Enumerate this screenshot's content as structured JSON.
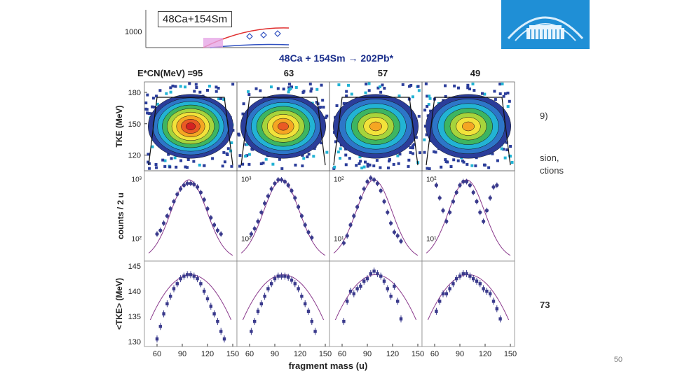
{
  "page_number": "50",
  "side_text": {
    "line1": "9)",
    "line2": "sion,",
    "line3": "ctions",
    "line4": "73"
  },
  "top_inset": {
    "label": "48Ca+154Sm",
    "ytick": "1000"
  },
  "reaction": "48Ca + 154Sm → 202Pb*",
  "colors": {
    "data": "#3a3a8c",
    "fit": "#8a3a8c",
    "logo": "#1f8fd6",
    "band_red": "#e03030",
    "band_blue": "#3050c0"
  },
  "chart_data": {
    "type": "scatter",
    "title": "48Ca + 154Sm → 202Pb*",
    "energy_label": "E*CN(MeV) =",
    "energies": [
      "95",
      "63",
      "57",
      "49"
    ],
    "xlabel": "fragment mass (u)",
    "xticks": [
      "60",
      "90",
      "120",
      "150"
    ],
    "xlim": [
      45,
      155
    ],
    "rows": [
      {
        "type": "heatmap",
        "ylabel": "TKE (MeV)",
        "yticks": [
          "120",
          "150",
          "180"
        ],
        "ylim": [
          105,
          190
        ]
      },
      {
        "type": "scatter",
        "ylabel": "counts / 2 u",
        "log": true,
        "panel_yticks": [
          [
            "10²",
            "10³"
          ],
          [
            "10²",
            "10³"
          ],
          [
            "10¹",
            "10²"
          ],
          [
            "10¹",
            "10²"
          ]
        ],
        "panels": [
          {
            "x": [
              60,
              64,
              68,
              72,
              76,
              80,
              84,
              88,
              92,
              96,
              100,
              104,
              108,
              112,
              116,
              120,
              124,
              128,
              132,
              136
            ],
            "y": [
              0.3,
              0.34,
              0.42,
              0.5,
              0.58,
              0.66,
              0.74,
              0.8,
              0.84,
              0.86,
              0.86,
              0.85,
              0.82,
              0.76,
              0.68,
              0.58,
              0.48,
              0.4,
              0.34,
              0.3
            ]
          },
          {
            "x": [
              62,
              66,
              70,
              74,
              78,
              82,
              86,
              90,
              94,
              98,
              102,
              106,
              110,
              114,
              118,
              122,
              126,
              130,
              134
            ],
            "y": [
              0.3,
              0.36,
              0.44,
              0.54,
              0.64,
              0.72,
              0.8,
              0.86,
              0.9,
              0.9,
              0.88,
              0.84,
              0.78,
              0.7,
              0.6,
              0.5,
              0.4,
              0.32,
              0.26
            ]
          },
          {
            "x": [
              62,
              66,
              70,
              74,
              78,
              82,
              86,
              90,
              94,
              98,
              102,
              106,
              110,
              114,
              118,
              122,
              126,
              130
            ],
            "y": [
              0.2,
              0.28,
              0.4,
              0.5,
              0.6,
              0.7,
              0.8,
              0.88,
              0.92,
              0.9,
              0.86,
              0.78,
              0.66,
              0.54,
              0.42,
              0.32,
              0.28,
              0.22
            ]
          },
          {
            "x": [
              62,
              66,
              70,
              74,
              78,
              82,
              86,
              90,
              94,
              98,
              102,
              106,
              110,
              114,
              118,
              122,
              126,
              130,
              134
            ],
            "y": [
              0.84,
              0.7,
              0.56,
              0.44,
              0.54,
              0.66,
              0.76,
              0.84,
              0.88,
              0.88,
              0.84,
              0.76,
              0.66,
              0.54,
              0.44,
              0.56,
              0.7,
              0.82,
              0.84
            ]
          }
        ]
      },
      {
        "type": "scatter",
        "ylabel": "<TKE> (MeV)",
        "yticks": [
          "130",
          "135",
          "140",
          "145"
        ],
        "ylim": [
          129,
          146
        ],
        "panels": [
          {
            "x": [
              60,
              64,
              68,
              72,
              76,
              80,
              84,
              88,
              92,
              96,
              100,
              104,
              108,
              112,
              116,
              120,
              124,
              128,
              132,
              136,
              140
            ],
            "y": [
              130.5,
              133.0,
              135.5,
              137.5,
              139.0,
              140.5,
              141.5,
              142.5,
              143.0,
              143.3,
              143.3,
              143.0,
              142.5,
              141.5,
              140.0,
              138.5,
              137.0,
              135.5,
              134.0,
              132.0,
              130.5
            ]
          },
          {
            "x": [
              62,
              66,
              70,
              74,
              78,
              82,
              86,
              90,
              94,
              98,
              102,
              106,
              110,
              114,
              118,
              122,
              126,
              130,
              134,
              138
            ],
            "y": [
              132.0,
              134.0,
              136.0,
              137.5,
              139.0,
              140.5,
              141.5,
              142.5,
              143.0,
              143.0,
              143.0,
              142.8,
              142.2,
              141.5,
              140.5,
              139.0,
              137.5,
              136.0,
              134.0,
              132.0
            ]
          },
          {
            "x": [
              62,
              66,
              70,
              74,
              78,
              82,
              86,
              90,
              94,
              98,
              102,
              106,
              110,
              114,
              118,
              122,
              126,
              130
            ],
            "y": [
              134.0,
              138.0,
              140.0,
              139.5,
              140.5,
              141.0,
              142.0,
              142.5,
              143.5,
              144.0,
              143.5,
              143.0,
              142.0,
              140.5,
              139.0,
              141.0,
              138.0,
              134.5
            ]
          },
          {
            "x": [
              62,
              66,
              70,
              74,
              78,
              82,
              86,
              90,
              94,
              98,
              102,
              106,
              110,
              114,
              118,
              122,
              126,
              130,
              134,
              138
            ],
            "y": [
              136.0,
              138.0,
              139.5,
              139.5,
              140.5,
              141.5,
              142.5,
              143.0,
              143.5,
              143.5,
              143.0,
              142.5,
              142.0,
              141.5,
              140.5,
              140.0,
              139.5,
              138.0,
              136.5,
              134.5
            ]
          }
        ]
      }
    ]
  }
}
